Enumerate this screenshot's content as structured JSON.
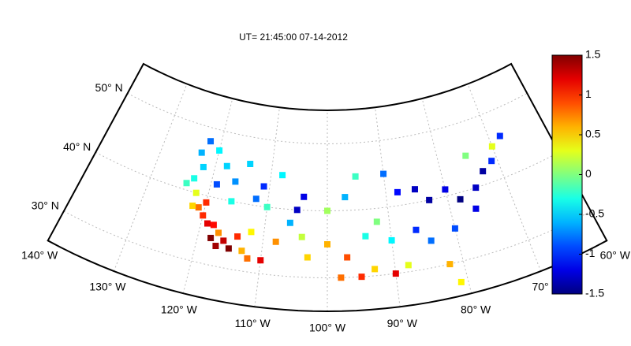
{
  "chart_data": {
    "type": "map-scatter",
    "title": "UT= 21:45:00  07-14-2012",
    "lonlim": [
      -140,
      -60
    ],
    "latlim": [
      25,
      55
    ],
    "lon_ticks": [
      {
        "value": -140,
        "label": "140° W"
      },
      {
        "value": -130,
        "label": "130° W"
      },
      {
        "value": -120,
        "label": "120° W"
      },
      {
        "value": -110,
        "label": "110° W"
      },
      {
        "value": -100,
        "label": "100° W"
      },
      {
        "value": -90,
        "label": "90° W"
      },
      {
        "value": -80,
        "label": "80° W"
      },
      {
        "value": -70,
        "label": "70° W"
      },
      {
        "value": -60,
        "label": "60° W"
      }
    ],
    "lat_ticks": [
      {
        "value": 30,
        "label": "30° N"
      },
      {
        "value": 40,
        "label": "40° N"
      },
      {
        "value": 50,
        "label": "50° N"
      }
    ],
    "clim": [
      -1.5,
      1.5
    ],
    "cticks": [
      -1.5,
      -1,
      -0.5,
      0,
      0.5,
      1,
      1.5
    ],
    "lon": [
      -118,
      -117,
      -116,
      -119,
      -120,
      -121,
      -118,
      -115,
      -114,
      -117,
      -113,
      -112,
      -110,
      -122,
      -123,
      -122,
      -123,
      -122,
      -120,
      -118,
      -116,
      -114,
      -119,
      -116,
      -112,
      -111,
      -108,
      -105,
      -104,
      -106,
      -104,
      -100,
      -97,
      -95,
      -98,
      -103,
      -100,
      -97,
      -95,
      -90,
      -88,
      -85,
      -83,
      -80,
      -78,
      -75,
      -73,
      -71,
      -76,
      -80,
      -84,
      -86,
      -90,
      -92,
      -94,
      -88,
      -82,
      -81,
      -90,
      -93,
      -70,
      -68,
      -75,
      -122,
      -120,
      -124,
      -110,
      -108,
      -112
    ],
    "lat": [
      34,
      33,
      34,
      36,
      37,
      38,
      36,
      33,
      35,
      35,
      33,
      32,
      32,
      40,
      42,
      44,
      46,
      48,
      47,
      45,
      43,
      46,
      42,
      40,
      41,
      43,
      45,
      40,
      42,
      38,
      36,
      35,
      33,
      30,
      30,
      33,
      40,
      42,
      45,
      45,
      42,
      42,
      40,
      41,
      39,
      40,
      42,
      43,
      37,
      35,
      34,
      36,
      35,
      38,
      36,
      31,
      30,
      27,
      30,
      31,
      45,
      46,
      45,
      38,
      39,
      41,
      40,
      35,
      36
    ],
    "values": [
      1.5,
      1.4,
      1.3,
      1.2,
      1.0,
      0.8,
      1.1,
      1.5,
      1.0,
      0.7,
      0.6,
      0.8,
      1.2,
      0.3,
      -0.3,
      -0.5,
      -0.6,
      -0.8,
      -0.4,
      -0.5,
      -0.7,
      -0.5,
      -0.9,
      -0.3,
      -0.8,
      -1.0,
      -0.4,
      -1.3,
      -1.2,
      -0.6,
      0.2,
      0.6,
      0.9,
      1.0,
      0.8,
      0.5,
      0.1,
      -0.6,
      -0.2,
      -0.8,
      -1.1,
      -1.3,
      -1.4,
      -1.2,
      -1.5,
      -1.3,
      -1.4,
      -1.0,
      -1.2,
      -0.9,
      -0.8,
      -1.0,
      -0.4,
      0.0,
      -0.3,
      0.3,
      0.6,
      0.4,
      1.2,
      0.5,
      0.3,
      -1.0,
      0.0,
      0.5,
      1.0,
      -0.2,
      -0.2,
      0.7,
      0.4
    ]
  }
}
